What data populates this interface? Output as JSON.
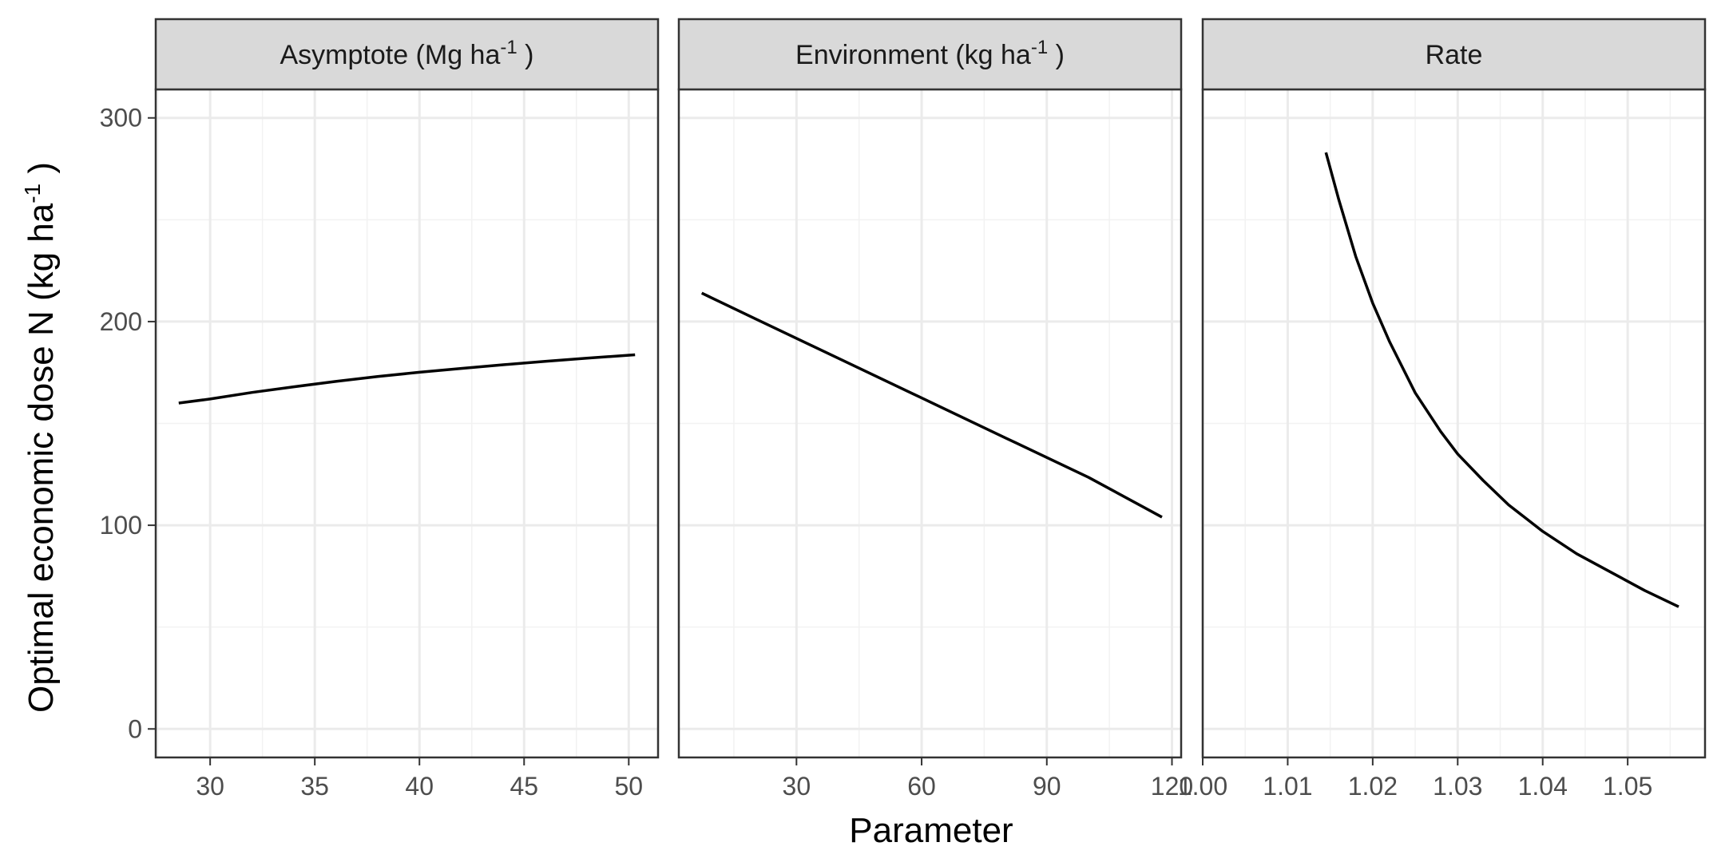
{
  "chart_data": {
    "type": "line",
    "ylabel": "Optimal economic dose N (kg ha",
    "ylabel_sup": "-1",
    "ylabel_tail": " )",
    "xlabel": "Parameter",
    "ylim": [
      -14,
      314
    ],
    "y_ticks": [
      0,
      100,
      200,
      300
    ],
    "grid": true,
    "line_color": "#000000",
    "facets": [
      {
        "label": "Asymptote (Mg ha",
        "label_sup": "-1",
        "label_tail": " )",
        "xlim": [
          27.4,
          51.4
        ],
        "x_ticks": [
          30,
          35,
          40,
          45,
          50
        ],
        "x_tick_labels": [
          "30",
          "35",
          "40",
          "45",
          "50"
        ],
        "x": [
          28.5,
          30,
          32,
          34,
          36,
          38,
          40,
          42,
          44,
          46,
          48,
          50.3
        ],
        "y": [
          160,
          162,
          165.2,
          168,
          170.6,
          173,
          175.1,
          177,
          178.8,
          180.5,
          182,
          183.7
        ]
      },
      {
        "label": "Environment (kg ha",
        "label_sup": "-1",
        "label_tail": " )",
        "xlim": [
          1.8,
          122.2
        ],
        "x_ticks": [
          30,
          60,
          90,
          120
        ],
        "x_tick_labels": [
          "30",
          "60",
          "90",
          "120"
        ],
        "x": [
          7.3,
          20,
          40,
          60,
          80,
          100,
          117.6
        ],
        "y": [
          214,
          201.5,
          182,
          162.5,
          143,
          123.5,
          104
        ]
      },
      {
        "label": "Rate",
        "label_sup": "",
        "label_tail": "",
        "xlim": [
          1.0,
          1.0591
        ],
        "x_ticks": [
          1.0,
          1.01,
          1.02,
          1.03,
          1.04,
          1.05
        ],
        "x_tick_labels": [
          "1.00",
          "1.01",
          "1.02",
          "1.03",
          "1.04",
          "1.05"
        ],
        "x": [
          1.0145,
          1.016,
          1.018,
          1.02,
          1.022,
          1.025,
          1.028,
          1.03,
          1.033,
          1.036,
          1.04,
          1.044,
          1.048,
          1.052,
          1.056
        ],
        "y": [
          283,
          260,
          232,
          209,
          190,
          165,
          146,
          135,
          122,
          110,
          97,
          86,
          77,
          68,
          60
        ]
      }
    ]
  }
}
